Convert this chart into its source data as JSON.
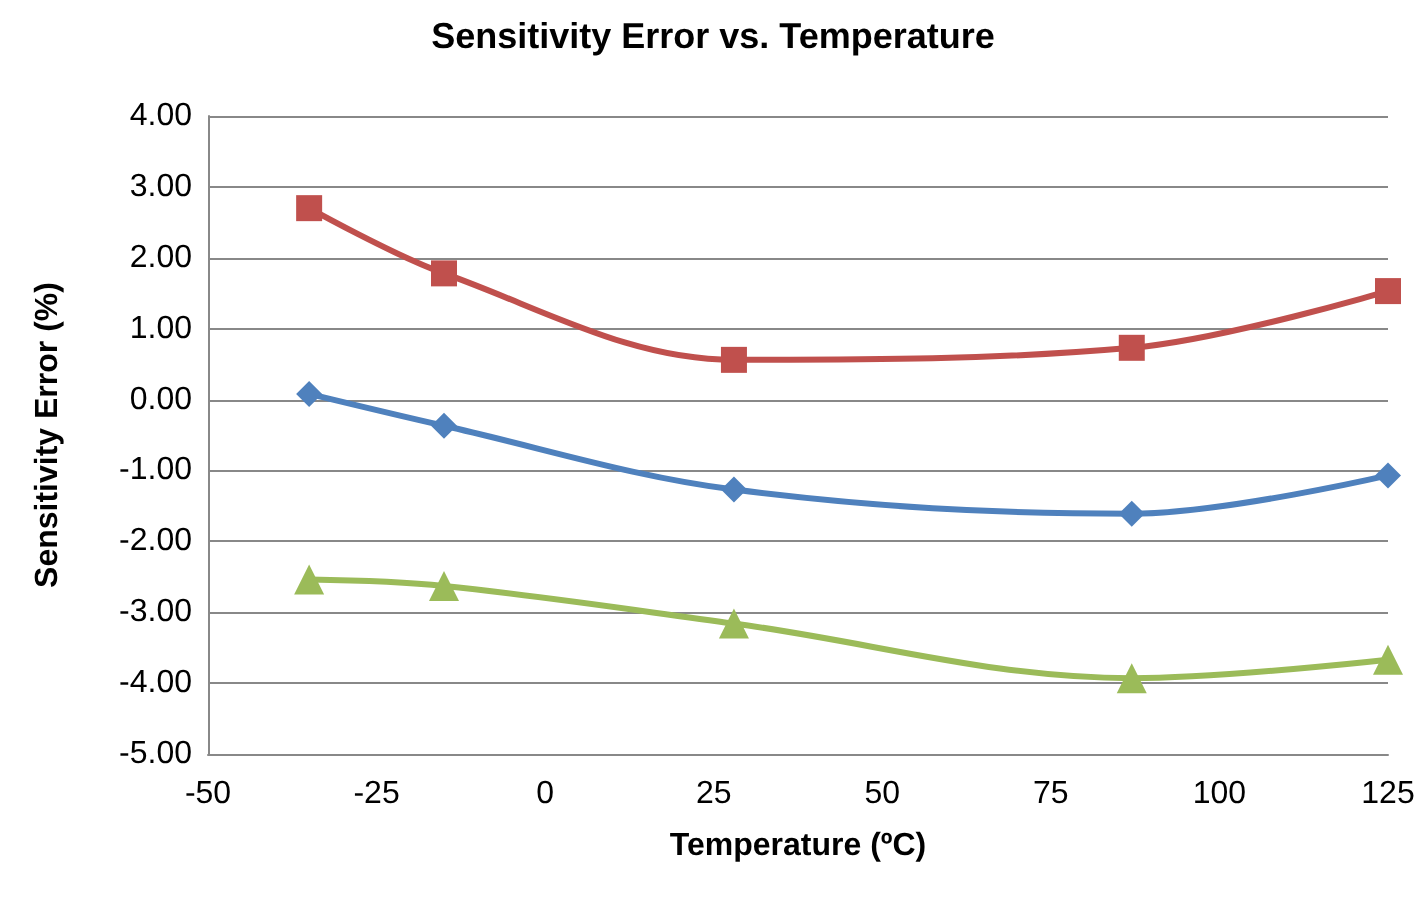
{
  "chart_data": {
    "type": "line",
    "title": "Sensitivity Error vs. Temperature",
    "xlabel": "Temperature (ºC)",
    "ylabel": "Sensitivity Error (%)",
    "x": [
      -35,
      -15,
      28,
      87,
      125
    ],
    "series": [
      {
        "color": "#c0504d",
        "marker": "square",
        "values": [
          2.7,
          1.78,
          0.56,
          0.73,
          1.53
        ]
      },
      {
        "color": "#4f81bd",
        "marker": "diamond",
        "values": [
          0.08,
          -0.37,
          -1.27,
          -1.61,
          -1.07
        ]
      },
      {
        "color": "#9bbb59",
        "marker": "triangle",
        "values": [
          -2.54,
          -2.63,
          -3.16,
          -3.93,
          -3.67
        ]
      }
    ],
    "xlim": [
      -50,
      125
    ],
    "xticks": [
      -50,
      -25,
      0,
      25,
      50,
      75,
      100,
      125
    ],
    "ylim": [
      -5,
      4
    ],
    "yticks": [
      {
        "value": -5,
        "label": "-5.00"
      },
      {
        "value": -4,
        "label": "-4.00"
      },
      {
        "value": -3,
        "label": "-3.00"
      },
      {
        "value": -2,
        "label": "-2.00"
      },
      {
        "value": -1,
        "label": "-1.00"
      },
      {
        "value": 0,
        "label": "0.00"
      },
      {
        "value": 1,
        "label": "1.00"
      },
      {
        "value": 2,
        "label": "2.00"
      },
      {
        "value": 3,
        "label": "3.00"
      },
      {
        "value": 4,
        "label": "4.00"
      }
    ],
    "grid": "y",
    "line_style": "solid"
  }
}
